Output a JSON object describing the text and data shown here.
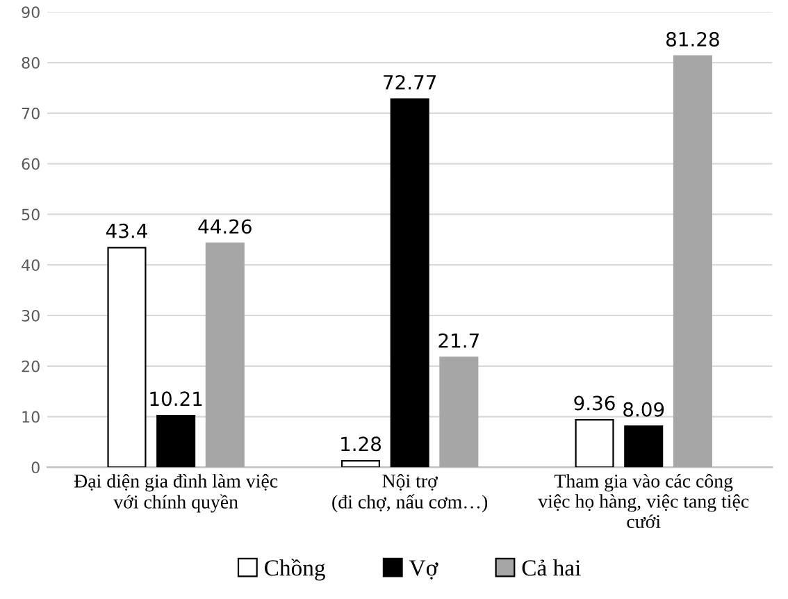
{
  "chart_data": {
    "type": "bar",
    "categories": [
      "Đại diện gia đình làm việc\nvới chính quyền",
      "Nội trợ\n(đi chợ, nấu cơm…)",
      "Tham gia vào các công\nviệc họ hàng, việc tang tiệc\ncưới"
    ],
    "series": [
      {
        "name": "Chồng",
        "color": "#ffffff",
        "values": [
          43.4,
          1.28,
          9.36
        ]
      },
      {
        "name": "Vợ",
        "color": "#000000",
        "values": [
          10.21,
          72.77,
          8.09
        ]
      },
      {
        "name": "Cả hai",
        "color": "#a6a6a6",
        "values": [
          44.26,
          21.7,
          81.28
        ]
      }
    ],
    "ylim": [
      0,
      90
    ],
    "yticks": [
      0,
      10,
      20,
      30,
      40,
      50,
      60,
      70,
      80,
      90
    ],
    "grid": "y",
    "legend": "bottom",
    "data_labels": true
  }
}
